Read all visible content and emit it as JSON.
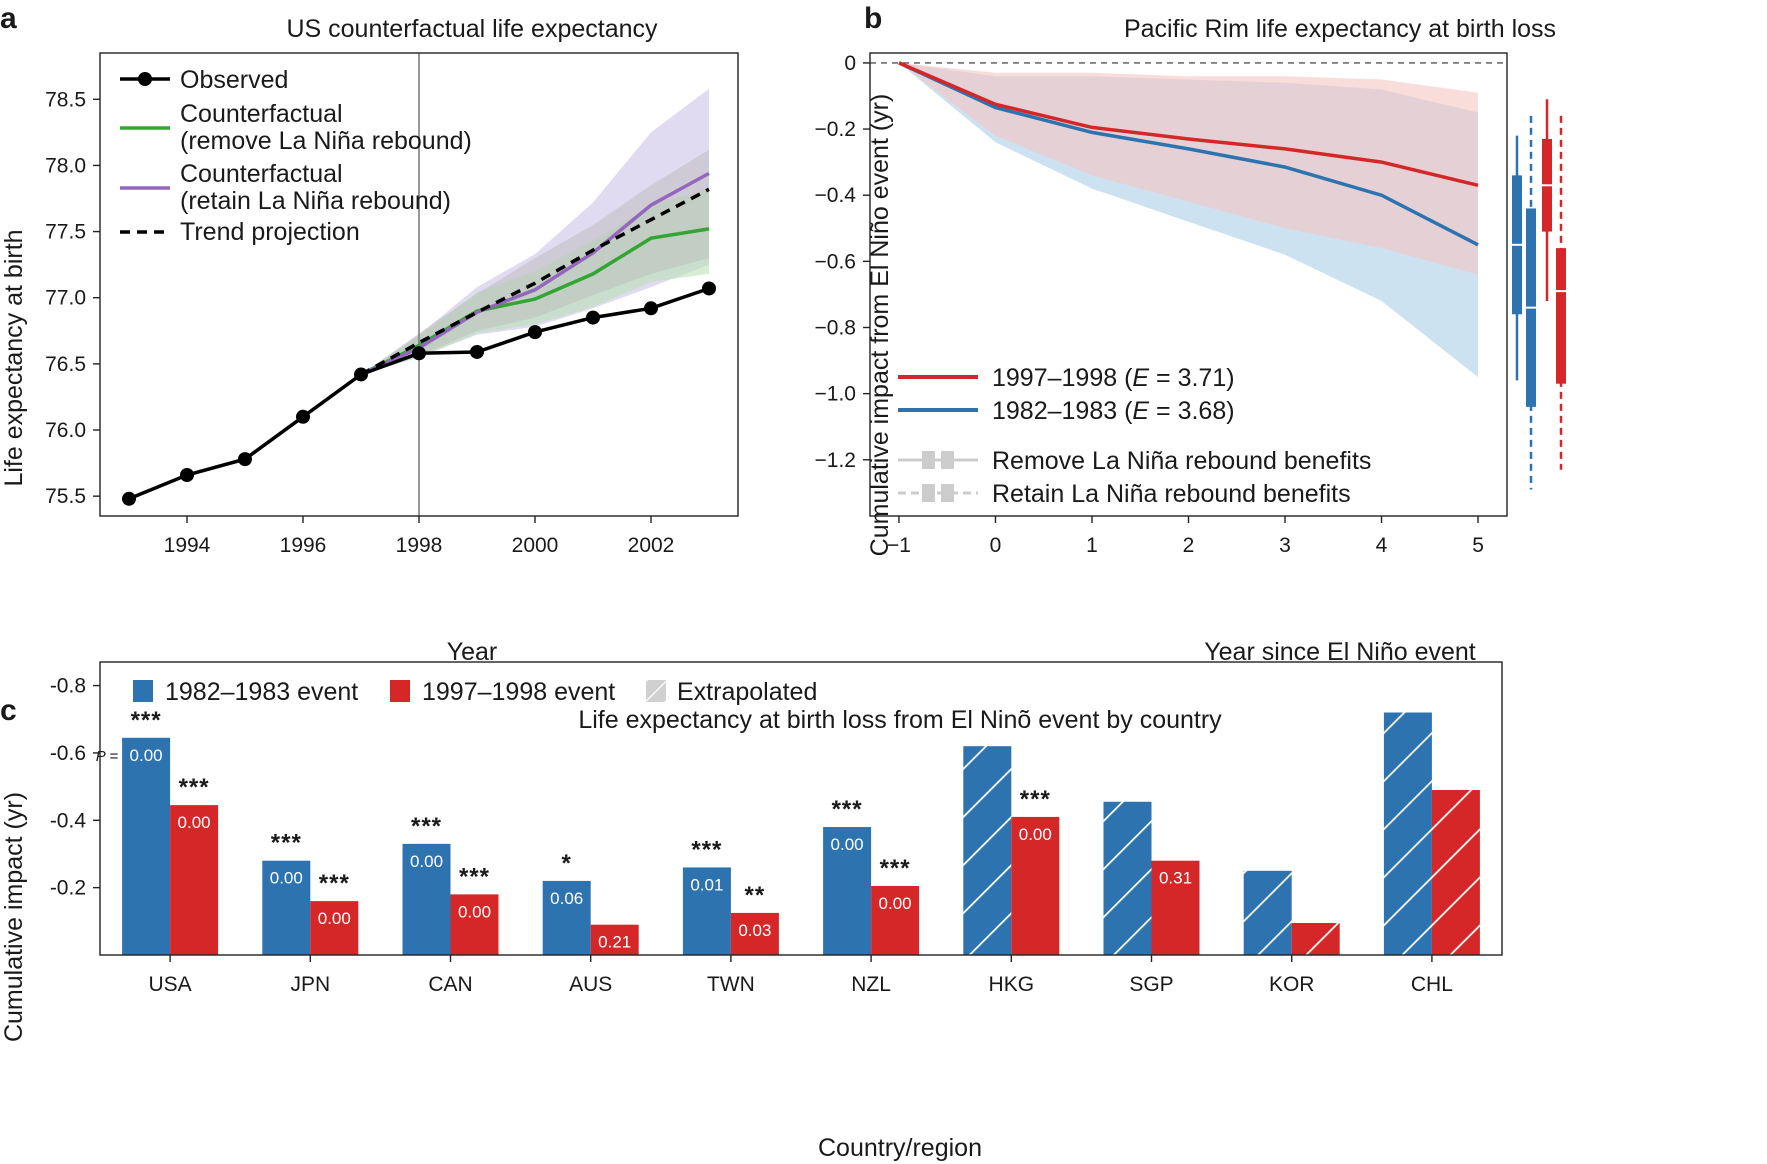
{
  "panel_labels": {
    "a": "a",
    "b": "b",
    "c": "c"
  },
  "chart_data": [
    {
      "id": "a",
      "type": "line",
      "title": "US counterfactual life expectancy",
      "xlabel": "Year",
      "ylabel": "Life expectancy at birth",
      "xlim": [
        1992.5,
        2003.5
      ],
      "ylim": [
        75.35,
        78.85
      ],
      "xticks": [
        "1994",
        "1996",
        "1998",
        "2000",
        "2002"
      ],
      "xtick_values": [
        1994,
        1996,
        1998,
        2000,
        2002
      ],
      "yticks": [
        "75.5",
        "76.0",
        "76.5",
        "77.0",
        "77.5",
        "78.0",
        "78.5"
      ],
      "ytick_values": [
        75.5,
        76.0,
        76.5,
        77.0,
        77.5,
        78.0,
        78.5
      ],
      "vline_x": 1998,
      "legend_position": "top-left",
      "legend": [
        {
          "key": "observed",
          "label_lines": [
            "Observed"
          ]
        },
        {
          "key": "remove",
          "label_lines": [
            "Counterfactual",
            "(remove La Niña rebound)"
          ]
        },
        {
          "key": "retain",
          "label_lines": [
            "Counterfactual",
            "(retain La Niña rebound)"
          ]
        },
        {
          "key": "trend",
          "label_lines": [
            "Trend projection"
          ]
        }
      ],
      "colors": {
        "observed": "#000000",
        "remove": "#33a532",
        "retain": "#9467bd",
        "trend": "#000000",
        "retain_band": "#c9bde6",
        "remove_band": "#b8e0b0",
        "trend_band": "#b9b9b9"
      },
      "series": {
        "observed": {
          "x": [
            1993,
            1994,
            1995,
            1996,
            1997,
            1998,
            1999,
            2000,
            2001,
            2002,
            2003
          ],
          "y": [
            75.48,
            75.66,
            75.78,
            76.1,
            76.42,
            76.58,
            76.59,
            76.74,
            76.85,
            76.92,
            77.07
          ]
        },
        "trend": {
          "x": [
            1997,
            1998,
            1999,
            2000,
            2001,
            2002,
            2003
          ],
          "y": [
            76.42,
            76.66,
            76.89,
            77.11,
            77.36,
            77.59,
            77.82
          ]
        },
        "remove": {
          "x": [
            1997,
            1998,
            1999,
            2000,
            2001,
            2002,
            2003
          ],
          "y": [
            76.42,
            76.64,
            76.9,
            76.99,
            77.18,
            77.45,
            77.52
          ]
        },
        "retain": {
          "x": [
            1997,
            1998,
            1999,
            2000,
            2001,
            2002,
            2003
          ],
          "y": [
            76.42,
            76.62,
            76.89,
            77.06,
            77.34,
            77.7,
            77.94
          ]
        },
        "retain_band": {
          "x": [
            1997,
            1998,
            1999,
            2000,
            2001,
            2002,
            2003
          ],
          "lo": [
            76.42,
            76.55,
            76.72,
            76.78,
            76.92,
            77.08,
            77.25
          ],
          "hi": [
            76.42,
            76.72,
            77.08,
            77.33,
            77.72,
            78.25,
            78.58
          ]
        },
        "remove_band": {
          "x": [
            1997,
            1998,
            1999,
            2000,
            2001,
            2002,
            2003
          ],
          "lo": [
            76.42,
            76.55,
            76.73,
            76.8,
            76.93,
            77.12,
            77.18
          ],
          "hi": [
            76.42,
            76.71,
            77.04,
            77.2,
            77.43,
            77.7,
            77.82
          ]
        },
        "trend_band": {
          "x": [
            1997,
            1998,
            1999,
            2000,
            2001,
            2002,
            2003
          ],
          "lo": [
            76.42,
            76.56,
            76.75,
            76.85,
            77.02,
            77.18,
            77.3
          ],
          "hi": [
            76.42,
            76.73,
            77.03,
            77.3,
            77.55,
            77.85,
            78.12
          ]
        }
      }
    },
    {
      "id": "b",
      "type": "line",
      "title": "Pacific Rim life expectancy at birth loss",
      "xlabel": "Year since El Niño event",
      "ylabel": "Cumulative impact from El Niño event (yr)",
      "xlim": [
        -1.3,
        5.3
      ],
      "ylim": [
        -1.37,
        0.03
      ],
      "xticks": [
        "−1",
        "0",
        "1",
        "2",
        "3",
        "4",
        "5"
      ],
      "xtick_values": [
        -1,
        0,
        1,
        2,
        3,
        4,
        5
      ],
      "yticks": [
        "0",
        "−0.2",
        "−0.4",
        "−0.6",
        "−0.8",
        "−1.0",
        "−1.2"
      ],
      "ytick_values": [
        0,
        -0.2,
        -0.4,
        -0.6,
        -0.8,
        -1.0,
        -1.2
      ],
      "hline_y": 0,
      "legend_position": "bottom-left",
      "legend": [
        {
          "key": "red",
          "label_pre": "1997–1998 (",
          "label_it": "E",
          "label_post": " = 3.71)"
        },
        {
          "key": "blue",
          "label_pre": "1982–1983 (",
          "label_it": "E",
          "label_post": " = 3.68)"
        },
        {
          "key": "remove",
          "label": "Remove La Niña rebound benefits"
        },
        {
          "key": "retain",
          "label": "Retain La Niña rebound benefits"
        }
      ],
      "colors": {
        "red": "#d62728",
        "blue": "#2c73b0",
        "red_band": "#f5c6c3",
        "blue_band": "#bcd8ec",
        "legend_gray": "#cccccc"
      },
      "series": {
        "red": {
          "name": "1997–1998",
          "x": [
            -1,
            0,
            1,
            2,
            3,
            4,
            5
          ],
          "y": [
            0,
            -0.125,
            -0.195,
            -0.23,
            -0.26,
            -0.3,
            -0.37
          ]
        },
        "blue": {
          "name": "1982–1983",
          "x": [
            -1,
            0,
            1,
            2,
            3,
            4,
            5
          ],
          "y": [
            0,
            -0.135,
            -0.21,
            -0.26,
            -0.315,
            -0.4,
            -0.55
          ]
        },
        "red_band": {
          "x": [
            -1,
            0,
            1,
            2,
            3,
            4,
            5
          ],
          "lo": [
            0,
            -0.22,
            -0.34,
            -0.42,
            -0.5,
            -0.56,
            -0.64
          ],
          "hi": [
            0,
            -0.03,
            -0.03,
            -0.04,
            -0.04,
            -0.05,
            -0.09
          ]
        },
        "blue_band": {
          "x": [
            -1,
            0,
            1,
            2,
            3,
            4,
            5
          ],
          "lo": [
            0,
            -0.24,
            -0.38,
            -0.48,
            -0.58,
            -0.72,
            -0.95
          ],
          "hi": [
            0,
            -0.04,
            -0.04,
            -0.05,
            -0.06,
            -0.08,
            -0.15
          ]
        }
      },
      "side_boxes": [
        {
          "color": "blue",
          "dashed": false,
          "whisker": [
            -0.22,
            -0.96
          ],
          "box": [
            -0.34,
            -0.76
          ],
          "median": -0.55
        },
        {
          "color": "blue",
          "dashed": true,
          "whisker": [
            -0.16,
            -1.29
          ],
          "box": [
            -0.44,
            -1.04
          ],
          "median": -0.74
        },
        {
          "color": "red",
          "dashed": false,
          "whisker": [
            -0.11,
            -0.72
          ],
          "box": [
            -0.23,
            -0.51
          ],
          "median": -0.37
        },
        {
          "color": "red",
          "dashed": true,
          "whisker": [
            -0.16,
            -1.23
          ],
          "box": [
            -0.56,
            -0.97
          ],
          "median": -0.69
        }
      ]
    },
    {
      "id": "c",
      "type": "bar",
      "title": "Life expectancy at birth loss from El Ninõ event by country",
      "xlabel": "Country/region",
      "ylabel": "Cumulative impact (yr)",
      "ylim": [
        0,
        -0.87
      ],
      "yticks": [
        "-0.8",
        "-0.6",
        "-0.4",
        "-0.2"
      ],
      "ytick_values": [
        -0.8,
        -0.6,
        -0.4,
        -0.2
      ],
      "legend_position": "top-left",
      "legend": [
        {
          "key": "blue",
          "label": "1982–1983 event"
        },
        {
          "key": "red",
          "label": "1997–1998 event"
        },
        {
          "key": "extra",
          "label": "Extrapolated"
        }
      ],
      "p_prefix": "P =",
      "colors": {
        "blue": "#2c73b0",
        "red": "#d62728",
        "extrapolated": "#d0d0d0"
      },
      "categories": [
        "USA",
        "JPN",
        "CAN",
        "AUS",
        "TWN",
        "NZL",
        "HKG",
        "SGP",
        "KOR",
        "CHL"
      ],
      "series": [
        {
          "name": "1982–1983 event",
          "values": [
            -0.645,
            -0.28,
            -0.33,
            -0.22,
            -0.26,
            -0.38,
            -0.62,
            -0.455,
            -0.25,
            -0.72
          ],
          "pvals": [
            "0.00",
            "0.00",
            "0.00",
            "0.06",
            "0.01",
            "0.00",
            "",
            "",
            "",
            ""
          ],
          "stars": [
            "***",
            "***",
            "***",
            "*",
            "***",
            "***",
            "",
            "",
            "",
            ""
          ],
          "extrapolated": [
            false,
            false,
            false,
            false,
            false,
            false,
            true,
            true,
            true,
            true
          ]
        },
        {
          "name": "1997–1998 event",
          "values": [
            -0.445,
            -0.16,
            -0.18,
            -0.09,
            -0.125,
            -0.205,
            -0.41,
            -0.28,
            -0.095,
            -0.49
          ],
          "pvals": [
            "0.00",
            "0.00",
            "0.00",
            "0.21",
            "0.03",
            "0.00",
            "0.00",
            "0.31",
            "",
            ""
          ],
          "stars": [
            "***",
            "***",
            "***",
            "",
            "**",
            "***",
            "***",
            "",
            "",
            ""
          ],
          "extrapolated": [
            false,
            false,
            false,
            false,
            false,
            false,
            false,
            false,
            true,
            true
          ]
        }
      ]
    }
  ]
}
